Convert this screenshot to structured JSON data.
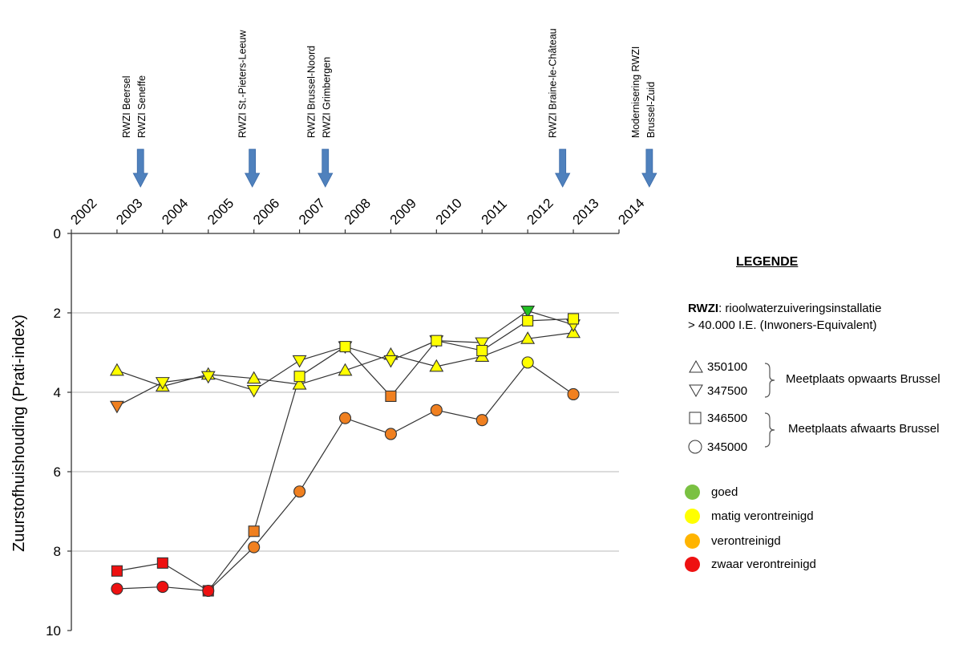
{
  "chart_data": {
    "type": "line",
    "ylabel": "Zuurstofhuishouding (Prati-index)",
    "xlabel": "",
    "x_ticks": [
      "2002",
      "2003",
      "2004",
      "2005",
      "2006",
      "2007",
      "2008",
      "2009",
      "2010",
      "2011",
      "2012",
      "2013",
      "2014"
    ],
    "y_ticks": [
      "0",
      "2",
      "4",
      "6",
      "8",
      "10"
    ],
    "ylim": [
      0,
      10
    ],
    "y_inverted": true,
    "grid": "horizontal",
    "events": [
      {
        "year": 2003.55,
        "lines": [
          "RWZI Beersel",
          "RWZI Seneffe"
        ]
      },
      {
        "year": 2006.0,
        "lines": [
          "RWZI St.-Pieters-Leeuw"
        ]
      },
      {
        "year": 2007.6,
        "lines": [
          "RWZI Brussel-Noord",
          "RWZI Grimbergen"
        ]
      },
      {
        "year": 2012.8,
        "lines": [
          "RWZI Braine-le-Château"
        ]
      },
      {
        "year": 2014.7,
        "lines": [
          "Modernisering RWZI",
          "Brussel-Zuid"
        ]
      }
    ],
    "colors": {
      "goed": "#22c022",
      "matig": "#ffff00",
      "verontreinigd": "#f08020",
      "zwaar": "#ee1111"
    },
    "series": [
      {
        "name": "350100",
        "marker": "triangle-up",
        "points": [
          {
            "x": 2003,
            "y": 3.45,
            "c": "matig"
          },
          {
            "x": 2004,
            "y": 3.85,
            "c": "matig"
          },
          {
            "x": 2005,
            "y": 3.55,
            "c": "matig"
          },
          {
            "x": 2006,
            "y": 3.65,
            "c": "matig"
          },
          {
            "x": 2007,
            "y": 3.8,
            "c": "matig"
          },
          {
            "x": 2008,
            "y": 3.45,
            "c": "matig"
          },
          {
            "x": 2009,
            "y": 3.05,
            "c": "matig"
          },
          {
            "x": 2010,
            "y": 3.35,
            "c": "matig"
          },
          {
            "x": 2011,
            "y": 3.1,
            "c": "matig"
          },
          {
            "x": 2012,
            "y": 2.65,
            "c": "matig"
          },
          {
            "x": 2013,
            "y": 2.5,
            "c": "matig"
          }
        ]
      },
      {
        "name": "347500",
        "marker": "triangle-down",
        "points": [
          {
            "x": 2003,
            "y": 4.35,
            "c": "verontreinigd"
          },
          {
            "x": 2004,
            "y": 3.75,
            "c": "matig"
          },
          {
            "x": 2005,
            "y": 3.6,
            "c": "matig"
          },
          {
            "x": 2006,
            "y": 3.95,
            "c": "matig"
          },
          {
            "x": 2007,
            "y": 3.2,
            "c": "matig"
          },
          {
            "x": 2008,
            "y": 2.85,
            "c": "matig"
          },
          {
            "x": 2009,
            "y": 3.2,
            "c": "matig"
          },
          {
            "x": 2010,
            "y": 2.7,
            "c": "matig"
          },
          {
            "x": 2011,
            "y": 2.75,
            "c": "matig"
          },
          {
            "x": 2012,
            "y": 1.95,
            "c": "goed"
          },
          {
            "x": 2013,
            "y": 2.3,
            "c": "matig"
          }
        ]
      },
      {
        "name": "346500",
        "marker": "square",
        "points": [
          {
            "x": 2003,
            "y": 8.5,
            "c": "zwaar"
          },
          {
            "x": 2004,
            "y": 8.3,
            "c": "zwaar"
          },
          {
            "x": 2005,
            "y": 9.0,
            "c": "zwaar"
          },
          {
            "x": 2006,
            "y": 7.5,
            "c": "verontreinigd"
          },
          {
            "x": 2007,
            "y": 3.6,
            "c": "matig"
          },
          {
            "x": 2008,
            "y": 2.85,
            "c": "matig"
          },
          {
            "x": 2009,
            "y": 4.1,
            "c": "verontreinigd"
          },
          {
            "x": 2010,
            "y": 2.7,
            "c": "matig"
          },
          {
            "x": 2011,
            "y": 2.95,
            "c": "matig"
          },
          {
            "x": 2012,
            "y": 2.2,
            "c": "matig"
          },
          {
            "x": 2013,
            "y": 2.15,
            "c": "matig"
          }
        ]
      },
      {
        "name": "345000",
        "marker": "circle",
        "points": [
          {
            "x": 2003,
            "y": 8.95,
            "c": "zwaar"
          },
          {
            "x": 2004,
            "y": 8.9,
            "c": "zwaar"
          },
          {
            "x": 2005,
            "y": 9.0,
            "c": "zwaar"
          },
          {
            "x": 2006,
            "y": 7.9,
            "c": "verontreinigd"
          },
          {
            "x": 2007,
            "y": 6.5,
            "c": "verontreinigd"
          },
          {
            "x": 2008,
            "y": 4.65,
            "c": "verontreinigd"
          },
          {
            "x": 2009,
            "y": 5.05,
            "c": "verontreinigd"
          },
          {
            "x": 2010,
            "y": 4.45,
            "c": "verontreinigd"
          },
          {
            "x": 2011,
            "y": 4.7,
            "c": "verontreinigd"
          },
          {
            "x": 2012,
            "y": 3.25,
            "c": "matig"
          },
          {
            "x": 2013,
            "y": 4.05,
            "c": "verontreinigd"
          }
        ]
      }
    ]
  },
  "legend": {
    "title": "LEGENDE",
    "rwzi_abbr": "RWZI",
    "rwzi_def": ": rioolwaterzuiveringsinstallatie",
    "rwzi_def2": "> 40.000 I.E. (Inwoners-Equivalent)",
    "sites": [
      "350100",
      "347500",
      "346500",
      "345000"
    ],
    "group_up": "Meetplaats opwaarts Brussel",
    "group_down": "Meetplaats afwaarts Brussel",
    "classes": [
      {
        "label": "goed",
        "color": "#7ac142"
      },
      {
        "label": "matig verontreinigd",
        "color": "#ffff00"
      },
      {
        "label": "verontreinigd",
        "color": "#ffb400"
      },
      {
        "label": "zwaar verontreinigd",
        "color": "#ee1111"
      }
    ]
  }
}
